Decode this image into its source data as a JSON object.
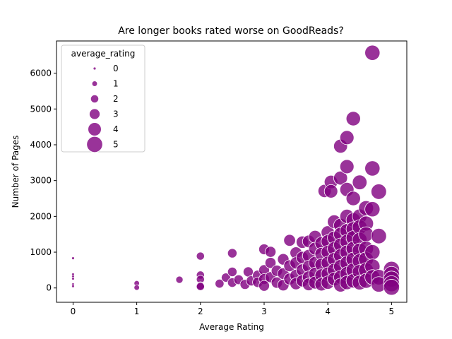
{
  "chart_data": {
    "type": "scatter",
    "title": "Are longer books rated worse on GoodReads?",
    "xlabel": "Average Rating",
    "ylabel": "Number of Pages",
    "xlim": [
      -0.26,
      5.24
    ],
    "ylim": [
      -400,
      6900
    ],
    "xticks": [
      0,
      1,
      2,
      3,
      4,
      5
    ],
    "yticks": [
      0,
      1000,
      2000,
      3000,
      4000,
      5000,
      6000
    ],
    "grid": false,
    "legend": {
      "title": "average_rating",
      "position": "upper-left",
      "entries": [
        {
          "label": "0",
          "size_value": 0
        },
        {
          "label": "1",
          "size_value": 1
        },
        {
          "label": "2",
          "size_value": 2
        },
        {
          "label": "3",
          "size_value": 3
        },
        {
          "label": "4",
          "size_value": 4
        },
        {
          "label": "5",
          "size_value": 5
        }
      ]
    },
    "size_encoding": "average_rating",
    "colors": {
      "marker": "#800080",
      "edge": "#ffffff"
    },
    "points": [
      [
        0,
        830
      ],
      [
        0,
        380
      ],
      [
        0,
        320
      ],
      [
        0,
        260
      ],
      [
        0,
        100
      ],
      [
        0,
        50
      ],
      [
        1,
        130
      ],
      [
        1,
        10
      ],
      [
        1.67,
        230
      ],
      [
        2,
        890
      ],
      [
        2,
        360
      ],
      [
        2,
        240
      ],
      [
        2,
        60
      ],
      [
        2,
        40
      ],
      [
        2.3,
        120
      ],
      [
        2.4,
        290
      ],
      [
        2.5,
        970
      ],
      [
        2.5,
        450
      ],
      [
        2.5,
        150
      ],
      [
        2.6,
        230
      ],
      [
        2.7,
        100
      ],
      [
        2.75,
        450
      ],
      [
        2.8,
        200
      ],
      [
        2.9,
        350
      ],
      [
        2.9,
        160
      ],
      [
        3.0,
        1080
      ],
      [
        3.0,
        500
      ],
      [
        3.0,
        250
      ],
      [
        3.0,
        60
      ],
      [
        3.1,
        1010
      ],
      [
        3.1,
        700
      ],
      [
        3.1,
        300
      ],
      [
        3.2,
        480
      ],
      [
        3.2,
        150
      ],
      [
        3.3,
        800
      ],
      [
        3.3,
        400
      ],
      [
        3.3,
        80
      ],
      [
        3.4,
        1330
      ],
      [
        3.4,
        620
      ],
      [
        3.4,
        250
      ],
      [
        3.5,
        980
      ],
      [
        3.5,
        700
      ],
      [
        3.5,
        350
      ],
      [
        3.5,
        120
      ],
      [
        3.6,
        1280
      ],
      [
        3.6,
        850
      ],
      [
        3.6,
        500
      ],
      [
        3.6,
        200
      ],
      [
        3.7,
        1300
      ],
      [
        3.7,
        900
      ],
      [
        3.7,
        600
      ],
      [
        3.7,
        300
      ],
      [
        3.7,
        100
      ],
      [
        3.8,
        1430
      ],
      [
        3.8,
        1100
      ],
      [
        3.8,
        700
      ],
      [
        3.8,
        400
      ],
      [
        3.8,
        150
      ],
      [
        3.9,
        1250
      ],
      [
        3.9,
        950
      ],
      [
        3.9,
        650
      ],
      [
        3.9,
        350
      ],
      [
        3.9,
        100
      ],
      [
        3.95,
        2710
      ],
      [
        4.0,
        1550
      ],
      [
        4.0,
        1300
      ],
      [
        4.0,
        1000
      ],
      [
        4.0,
        700
      ],
      [
        4.0,
        400
      ],
      [
        4.0,
        150
      ],
      [
        4.05,
        2960
      ],
      [
        4.05,
        2700
      ],
      [
        4.1,
        1850
      ],
      [
        4.1,
        1400
      ],
      [
        4.1,
        1100
      ],
      [
        4.1,
        800
      ],
      [
        4.1,
        500
      ],
      [
        4.1,
        250
      ],
      [
        4.2,
        3960
      ],
      [
        4.2,
        3070
      ],
      [
        4.2,
        1750
      ],
      [
        4.2,
        1500
      ],
      [
        4.2,
        1200
      ],
      [
        4.2,
        900
      ],
      [
        4.2,
        600
      ],
      [
        4.2,
        300
      ],
      [
        4.2,
        80
      ],
      [
        4.3,
        4200
      ],
      [
        4.3,
        3390
      ],
      [
        4.3,
        2750
      ],
      [
        4.3,
        2000
      ],
      [
        4.3,
        1600
      ],
      [
        4.3,
        1300
      ],
      [
        4.3,
        1000
      ],
      [
        4.3,
        700
      ],
      [
        4.3,
        400
      ],
      [
        4.3,
        150
      ],
      [
        4.4,
        4730
      ],
      [
        4.4,
        2500
      ],
      [
        4.4,
        1900
      ],
      [
        4.4,
        1650
      ],
      [
        4.4,
        1400
      ],
      [
        4.4,
        1100
      ],
      [
        4.4,
        800
      ],
      [
        4.4,
        500
      ],
      [
        4.4,
        200
      ],
      [
        4.5,
        2950
      ],
      [
        4.5,
        2000
      ],
      [
        4.5,
        1700
      ],
      [
        4.5,
        1350
      ],
      [
        4.5,
        1050
      ],
      [
        4.5,
        750
      ],
      [
        4.5,
        450
      ],
      [
        4.5,
        150
      ],
      [
        4.6,
        2230
      ],
      [
        4.6,
        1800
      ],
      [
        4.6,
        1500
      ],
      [
        4.6,
        1100
      ],
      [
        4.6,
        800
      ],
      [
        4.6,
        500
      ],
      [
        4.6,
        200
      ],
      [
        4.7,
        6570
      ],
      [
        4.7,
        3340
      ],
      [
        4.7,
        2200
      ],
      [
        4.7,
        1000
      ],
      [
        4.7,
        600
      ],
      [
        4.7,
        300
      ],
      [
        4.8,
        2690
      ],
      [
        4.8,
        1450
      ],
      [
        4.8,
        300
      ],
      [
        4.8,
        100
      ],
      [
        5.0,
        520
      ],
      [
        5.0,
        380
      ],
      [
        5.0,
        250
      ],
      [
        5.0,
        120
      ],
      [
        5.0,
        20
      ]
    ]
  }
}
